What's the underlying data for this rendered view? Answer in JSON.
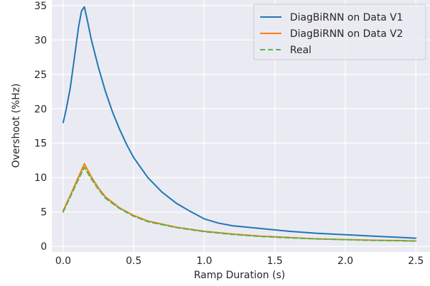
{
  "chart_data": {
    "type": "line",
    "xlabel": "Ramp Duration (s)",
    "ylabel": "Overshoot (%Hz)",
    "xlim": [
      -0.08,
      2.6
    ],
    "ylim": [
      -0.8,
      35.8
    ],
    "xticks": [
      0.0,
      0.5,
      1.0,
      1.5,
      2.0,
      2.5
    ],
    "xtick_labels": [
      "0.0",
      "0.5",
      "1.0",
      "1.5",
      "2.0",
      "2.5"
    ],
    "yticks": [
      0,
      5,
      10,
      15,
      20,
      25,
      30,
      35
    ],
    "ytick_labels": [
      "0",
      "5",
      "10",
      "15",
      "20",
      "25",
      "30",
      "35"
    ],
    "grid": true,
    "legend_position": "top-right",
    "series": [
      {
        "name": "DiagBiRNN on Data V1",
        "color": "#1f77b4",
        "dash": "solid",
        "x": [
          0.0,
          0.02,
          0.05,
          0.08,
          0.11,
          0.13,
          0.15,
          0.17,
          0.2,
          0.25,
          0.3,
          0.35,
          0.4,
          0.45,
          0.5,
          0.6,
          0.7,
          0.8,
          0.9,
          1.0,
          1.1,
          1.2,
          1.4,
          1.6,
          1.8,
          2.0,
          2.2,
          2.4,
          2.5
        ],
        "y": [
          18.0,
          19.8,
          23.0,
          27.5,
          32.0,
          34.2,
          34.8,
          33.0,
          30.0,
          26.0,
          22.5,
          19.5,
          17.0,
          14.8,
          12.9,
          10.0,
          7.9,
          6.3,
          5.1,
          4.0,
          3.4,
          3.0,
          2.6,
          2.2,
          1.9,
          1.7,
          1.5,
          1.3,
          1.2
        ]
      },
      {
        "name": "DiagBiRNN on Data V2",
        "color": "#ff7f0e",
        "dash": "solid",
        "x": [
          0.0,
          0.05,
          0.1,
          0.15,
          0.2,
          0.25,
          0.3,
          0.4,
          0.5,
          0.6,
          0.8,
          1.0,
          1.2,
          1.4,
          1.6,
          1.8,
          2.0,
          2.2,
          2.4,
          2.5
        ],
        "y": [
          5.2,
          7.4,
          9.7,
          12.0,
          10.1,
          8.5,
          7.2,
          5.6,
          4.5,
          3.7,
          2.8,
          2.2,
          1.8,
          1.5,
          1.3,
          1.1,
          1.0,
          0.9,
          0.85,
          0.8
        ]
      },
      {
        "name": "Real",
        "color": "#55b44f",
        "dash": "dashed",
        "x": [
          0.0,
          0.05,
          0.1,
          0.15,
          0.2,
          0.25,
          0.3,
          0.4,
          0.5,
          0.6,
          0.8,
          1.0,
          1.2,
          1.4,
          1.6,
          1.8,
          2.0,
          2.2,
          2.4,
          2.5
        ],
        "y": [
          5.0,
          7.2,
          9.4,
          11.5,
          9.8,
          8.3,
          7.0,
          5.5,
          4.4,
          3.6,
          2.75,
          2.15,
          1.75,
          1.45,
          1.25,
          1.1,
          0.98,
          0.88,
          0.82,
          0.78
        ]
      }
    ]
  }
}
